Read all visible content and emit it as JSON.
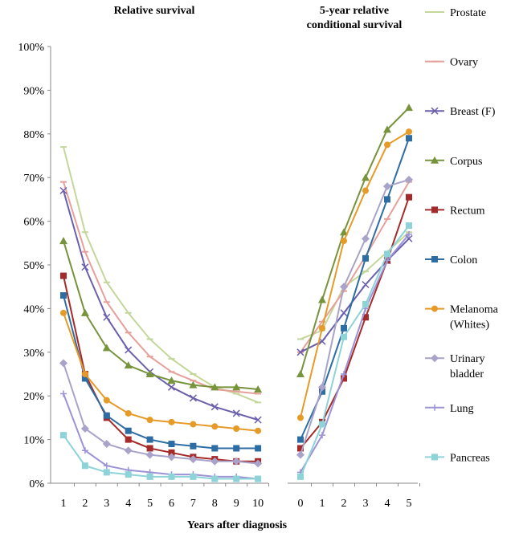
{
  "chart_data": {
    "type": "line",
    "panels": [
      {
        "title": "Relative survival",
        "x": [
          1,
          2,
          3,
          4,
          5,
          6,
          7,
          8,
          9,
          10
        ]
      },
      {
        "title": "5-year relative conditional survival",
        "title_lines": [
          "5-year relative",
          "conditional survival"
        ],
        "x": [
          0,
          1,
          2,
          3,
          4,
          5
        ]
      }
    ],
    "xlabel": "Years after diagnosis",
    "ylabel": "",
    "ylim": [
      0,
      100
    ],
    "yticks": [
      "0%",
      "10%",
      "20%",
      "30%",
      "40%",
      "50%",
      "60%",
      "70%",
      "80%",
      "90%",
      "100%"
    ],
    "grid": false,
    "legend_position": "right",
    "series": [
      {
        "name": "Prostate",
        "legend_lines": [
          "Prostate"
        ],
        "color": "#c4d79b",
        "marker": "dash",
        "relative_survival": [
          77,
          57.5,
          46,
          39,
          33,
          28.5,
          25,
          22,
          20.5,
          18.5
        ],
        "conditional_survival": [
          33,
          35,
          45,
          48.5,
          53,
          57.5
        ]
      },
      {
        "name": "Ovary",
        "legend_lines": [
          "Ovary"
        ],
        "color": "#e6a09a",
        "marker": "dash",
        "relative_survival": [
          69,
          53,
          41.5,
          34.5,
          29,
          25.5,
          23.5,
          21.5,
          21,
          20.5
        ],
        "conditional_survival": [
          30,
          37,
          44,
          52,
          60.5,
          69
        ]
      },
      {
        "name": "Breast (F)",
        "legend_lines": [
          "Breast (F)"
        ],
        "color": "#6a5fad",
        "marker": "x",
        "relative_survival": [
          67,
          49.5,
          38,
          30.5,
          25.5,
          22,
          19.5,
          17.5,
          16,
          14.5
        ],
        "conditional_survival": [
          30,
          32.5,
          39,
          45.5,
          51,
          56
        ]
      },
      {
        "name": "Corpus",
        "legend_lines": [
          "Corpus"
        ],
        "color": "#77933c",
        "marker": "triangle",
        "relative_survival": [
          55.5,
          39,
          31,
          27,
          25,
          23.5,
          22.5,
          22,
          22,
          21.5
        ],
        "conditional_survival": [
          25,
          42,
          57.5,
          70,
          81,
          86
        ]
      },
      {
        "name": "Rectum",
        "legend_lines": [
          "Rectum"
        ],
        "color": "#a52a2a",
        "marker": "square",
        "relative_survival": [
          47.5,
          25,
          15,
          10,
          8,
          7,
          6,
          5.5,
          5,
          5
        ],
        "conditional_survival": [
          8,
          14,
          24,
          38,
          51,
          65.5
        ]
      },
      {
        "name": "Colon",
        "legend_lines": [
          "Colon"
        ],
        "color": "#2e6da4",
        "marker": "square",
        "relative_survival": [
          43,
          24,
          15.5,
          12,
          10,
          9,
          8.5,
          8,
          8,
          8
        ],
        "conditional_survival": [
          10,
          21,
          35.5,
          51.5,
          65,
          79
        ]
      },
      {
        "name": "Melanoma (Whites)",
        "legend_lines": [
          "Melanoma",
          "(Whites)"
        ],
        "color": "#e69a28",
        "marker": "circle",
        "relative_survival": [
          39,
          25,
          19,
          16,
          14.5,
          14,
          13.5,
          13,
          12.5,
          12
        ],
        "conditional_survival": [
          15,
          35.5,
          55.5,
          67,
          77.5,
          80.5
        ]
      },
      {
        "name": "Urinary bladder",
        "legend_lines": [
          "Urinary",
          "bladder"
        ],
        "color": "#a9a3c9",
        "marker": "diamond",
        "relative_survival": [
          27.5,
          12.5,
          9,
          7.5,
          6.5,
          6,
          5.5,
          5,
          5,
          4.5
        ],
        "conditional_survival": [
          6.5,
          22,
          45,
          56,
          68,
          69.5
        ]
      },
      {
        "name": "Lung",
        "legend_lines": [
          "Lung"
        ],
        "color": "#9b93d6",
        "marker": "plus",
        "relative_survival": [
          20.5,
          7.5,
          4,
          3,
          2.5,
          2,
          2,
          1.5,
          1.5,
          1
        ],
        "conditional_survival": [
          2.5,
          11,
          25,
          40,
          51,
          57
        ]
      },
      {
        "name": "Pancreas",
        "legend_lines": [
          "Pancreas"
        ],
        "color": "#8dd3d8",
        "marker": "square",
        "relative_survival": [
          11,
          4,
          2.5,
          2,
          1.5,
          1.5,
          1.5,
          1,
          1,
          1
        ],
        "conditional_survival": [
          1.5,
          13.5,
          33.5,
          41,
          52.5,
          59
        ]
      }
    ]
  }
}
